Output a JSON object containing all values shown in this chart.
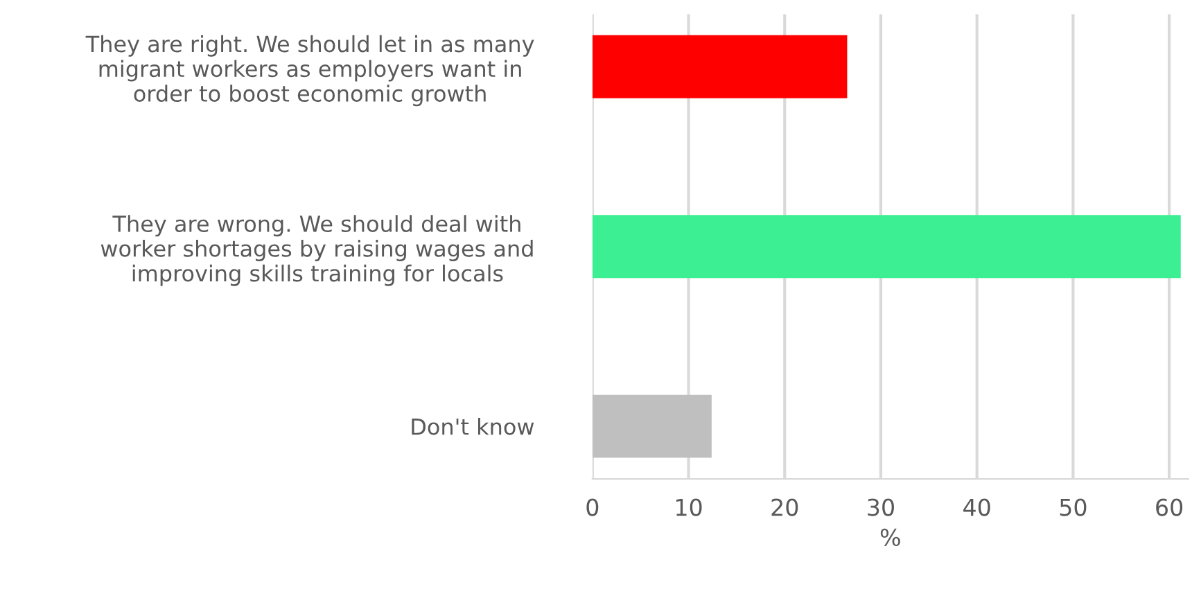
{
  "chart_data": {
    "type": "bar",
    "orientation": "horizontal",
    "xlabel": "%",
    "categories": [
      "They are right. We should let in as many\nmigrant workers as employers want in\norder to boost economic growth",
      "They are wrong. We should deal with\nworker shortages by raising wages and\nimproving skills training for locals",
      "Don't know"
    ],
    "values": [
      26.5,
      61.2,
      12.4
    ],
    "colors": [
      "#ff0000",
      "#3def93",
      "#bfbfbf"
    ],
    "xlim": [
      0,
      62
    ],
    "xticks": [
      0,
      10,
      20,
      30,
      40,
      50,
      60
    ],
    "grid": "x",
    "legend": false
  }
}
